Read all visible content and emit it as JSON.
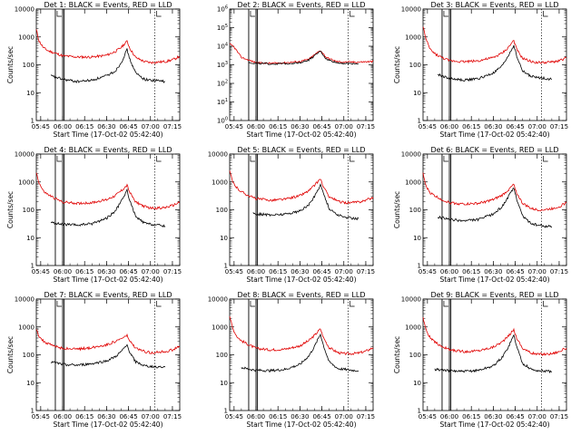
{
  "chart_data": [
    {
      "type": "line",
      "title": "Det 1: BLACK = Events, RED = LLD",
      "panel": 1,
      "xlabel": "Start Time (17-Oct-02 05:42:40)",
      "ylabel": "Counts/sec",
      "yscale": "log",
      "ylim": [
        1,
        10000
      ],
      "xticks": [
        "05:45",
        "06:00",
        "06:15",
        "06:30",
        "06:45",
        "07:00",
        "07:15"
      ],
      "yticks": [
        "1",
        "10",
        "100",
        "1000",
        "10000"
      ],
      "series": [
        {
          "color": "#e00000",
          "x": [
            "05:42",
            "05:44",
            "05:47",
            "05:50",
            "05:55",
            "06:00",
            "06:10",
            "06:20",
            "06:30",
            "06:36",
            "06:40",
            "06:44",
            "06:46",
            "06:50",
            "06:56",
            "07:00",
            "07:05",
            "07:10",
            "07:15",
            "07:20"
          ],
          "values": [
            1800,
            700,
            400,
            320,
            260,
            210,
            190,
            190,
            220,
            300,
            420,
            700,
            380,
            180,
            130,
            120,
            125,
            130,
            150,
            200
          ]
        },
        {
          "color": "#000000",
          "x": [
            "05:52",
            "05:56",
            "06:00",
            "06:10",
            "06:20",
            "06:30",
            "06:36",
            "06:40",
            "06:44",
            "06:46",
            "06:50",
            "06:56",
            "07:00",
            "07:05",
            "07:10"
          ],
          "values": [
            40,
            35,
            30,
            25,
            28,
            40,
            60,
            120,
            350,
            150,
            50,
            30,
            28,
            27,
            25
          ]
        }
      ],
      "vlines_solid": [
        "05:55",
        "06:00",
        "06:01"
      ],
      "vlines_dotted": [
        "07:03"
      ]
    },
    {
      "type": "line",
      "title": "Det 2: BLACK = Events, RED = LLD",
      "panel": 2,
      "xlabel": "Start Time (17-Oct-02 05:42:40)",
      "ylabel": "",
      "yscale": "log",
      "ylim": [
        1,
        1000000
      ],
      "xticks": [
        "05:45",
        "06:00",
        "06:15",
        "06:30",
        "06:45",
        "07:00",
        "07:15"
      ],
      "yticks": [
        "10^0",
        "10^1",
        "10^2",
        "10^3",
        "10^4",
        "10^5",
        "10^6"
      ],
      "series": [
        {
          "color": "#e00000",
          "x": [
            "05:42",
            "05:45",
            "05:50",
            "06:00",
            "06:10",
            "06:20",
            "06:30",
            "06:36",
            "06:40",
            "06:44",
            "06:48",
            "06:55",
            "07:00",
            "07:10",
            "07:20"
          ],
          "values": [
            13000,
            9000,
            2500,
            1300,
            1200,
            1300,
            1500,
            2000,
            3500,
            6000,
            2500,
            1500,
            1400,
            1400,
            1500
          ]
        },
        {
          "color": "#000000",
          "x": [
            "05:55",
            "06:00",
            "06:10",
            "06:20",
            "06:30",
            "06:36",
            "06:40",
            "06:44",
            "06:48",
            "06:55",
            "07:00",
            "07:10"
          ],
          "values": [
            1300,
            1200,
            1100,
            1150,
            1300,
            1800,
            3000,
            5500,
            2000,
            1300,
            1200,
            1150
          ]
        }
      ],
      "vlines_solid": [
        "05:55",
        "06:00",
        "06:01"
      ],
      "vlines_dotted": [
        "07:03"
      ]
    },
    {
      "type": "line",
      "title": "Det 3: BLACK = Events, RED = LLD",
      "panel": 3,
      "xlabel": "Start Time (17-Oct-02 05:42:40)",
      "ylabel": "Counts/sec",
      "yscale": "log",
      "ylim": [
        1,
        10000
      ],
      "xticks": [
        "05:45",
        "06:00",
        "06:15",
        "06:30",
        "06:45",
        "07:00",
        "07:15"
      ],
      "yticks": [
        "1",
        "10",
        "100",
        "1000",
        "10000"
      ],
      "series": [
        {
          "color": "#e00000",
          "x": [
            "05:42",
            "05:44",
            "05:47",
            "05:50",
            "05:55",
            "06:00",
            "06:10",
            "06:20",
            "06:30",
            "06:36",
            "06:40",
            "06:44",
            "06:46",
            "06:50",
            "06:56",
            "07:00",
            "07:05",
            "07:10",
            "07:15",
            "07:20"
          ],
          "values": [
            2500,
            800,
            350,
            250,
            180,
            140,
            130,
            140,
            180,
            260,
            400,
            750,
            350,
            170,
            130,
            120,
            120,
            125,
            140,
            180
          ]
        },
        {
          "color": "#000000",
          "x": [
            "05:52",
            "05:56",
            "06:00",
            "06:10",
            "06:20",
            "06:30",
            "06:36",
            "06:40",
            "06:44",
            "06:46",
            "06:50",
            "06:56",
            "07:00",
            "07:05",
            "07:10"
          ],
          "values": [
            45,
            38,
            32,
            28,
            32,
            50,
            90,
            200,
            500,
            200,
            60,
            38,
            35,
            33,
            30
          ]
        }
      ],
      "vlines_solid": [
        "05:55",
        "06:00",
        "06:01"
      ],
      "vlines_dotted": [
        "07:03"
      ]
    },
    {
      "type": "line",
      "title": "Det 4: BLACK = Events, RED = LLD",
      "panel": 4,
      "xlabel": "Start Time (17-Oct-02 05:42:40)",
      "ylabel": "Counts/sec",
      "yscale": "log",
      "ylim": [
        1,
        10000
      ],
      "xticks": [
        "05:45",
        "06:00",
        "06:15",
        "06:30",
        "06:45",
        "07:00",
        "07:15"
      ],
      "yticks": [
        "1",
        "10",
        "100",
        "1000",
        "10000"
      ],
      "series": [
        {
          "color": "#e00000",
          "x": [
            "05:42",
            "05:44",
            "05:47",
            "05:50",
            "05:55",
            "06:00",
            "06:10",
            "06:20",
            "06:30",
            "06:36",
            "06:40",
            "06:44",
            "06:46",
            "06:50",
            "06:56",
            "07:00",
            "07:05",
            "07:10",
            "07:15",
            "07:20"
          ],
          "values": [
            2200,
            900,
            450,
            350,
            250,
            190,
            170,
            180,
            230,
            330,
            480,
            750,
            400,
            190,
            130,
            115,
            115,
            120,
            140,
            190
          ]
        },
        {
          "color": "#000000",
          "x": [
            "05:52",
            "05:56",
            "06:00",
            "06:10",
            "06:20",
            "06:30",
            "06:36",
            "06:40",
            "06:44",
            "06:46",
            "06:50",
            "06:56",
            "07:00",
            "07:05",
            "07:10"
          ],
          "values": [
            35,
            32,
            30,
            28,
            32,
            50,
            90,
            200,
            500,
            200,
            55,
            33,
            30,
            28,
            26
          ]
        }
      ],
      "vlines_solid": [
        "05:55",
        "06:00",
        "06:01"
      ],
      "vlines_dotted": [
        "07:03"
      ]
    },
    {
      "type": "line",
      "title": "Det 5: BLACK = Events, RED = LLD",
      "panel": 5,
      "xlabel": "Start Time (17-Oct-02 05:42:40)",
      "ylabel": "",
      "yscale": "log",
      "ylim": [
        1,
        10000
      ],
      "xticks": [
        "05:45",
        "06:00",
        "06:15",
        "06:30",
        "06:45",
        "07:00",
        "07:15"
      ],
      "yticks": [
        "1",
        "10",
        "100",
        "1000",
        "10000"
      ],
      "series": [
        {
          "color": "#e00000",
          "x": [
            "05:42",
            "05:44",
            "05:47",
            "05:50",
            "05:55",
            "06:00",
            "06:10",
            "06:20",
            "06:30",
            "06:36",
            "06:40",
            "06:44",
            "06:46",
            "06:50",
            "06:56",
            "07:00",
            "07:05",
            "07:10",
            "07:15",
            "07:20"
          ],
          "values": [
            2500,
            1000,
            600,
            450,
            320,
            250,
            220,
            240,
            320,
            480,
            750,
            1300,
            650,
            300,
            200,
            180,
            180,
            190,
            220,
            280
          ]
        },
        {
          "color": "#000000",
          "x": [
            "05:58",
            "06:02",
            "06:10",
            "06:20",
            "06:30",
            "06:36",
            "06:40",
            "06:44",
            "06:46",
            "06:50",
            "06:56",
            "07:00",
            "07:05",
            "07:10"
          ],
          "values": [
            75,
            70,
            65,
            70,
            90,
            150,
            300,
            800,
            400,
            110,
            65,
            55,
            50,
            48
          ]
        }
      ],
      "vlines_solid": [
        "05:55",
        "06:00",
        "06:01"
      ],
      "vlines_dotted": [
        "07:03"
      ]
    },
    {
      "type": "line",
      "title": "Det 6: BLACK = Events, RED = LLD",
      "panel": 6,
      "xlabel": "Start Time (17-Oct-02 05:42:40)",
      "ylabel": "Counts/sec",
      "yscale": "log",
      "ylim": [
        1,
        10000
      ],
      "xticks": [
        "05:45",
        "06:00",
        "06:15",
        "06:30",
        "06:45",
        "07:00",
        "07:15"
      ],
      "yticks": [
        "1",
        "10",
        "100",
        "1000",
        "10000"
      ],
      "series": [
        {
          "color": "#e00000",
          "x": [
            "05:42",
            "05:44",
            "05:47",
            "05:50",
            "05:55",
            "06:00",
            "06:10",
            "06:20",
            "06:30",
            "06:36",
            "06:40",
            "06:44",
            "06:46",
            "06:50",
            "06:56",
            "07:00",
            "07:05",
            "07:10",
            "07:15",
            "07:20"
          ],
          "values": [
            2000,
            700,
            400,
            320,
            230,
            180,
            160,
            170,
            230,
            330,
            500,
            800,
            400,
            170,
            110,
            100,
            100,
            110,
            130,
            180
          ]
        },
        {
          "color": "#000000",
          "x": [
            "05:52",
            "05:56",
            "06:00",
            "06:10",
            "06:20",
            "06:30",
            "06:36",
            "06:40",
            "06:44",
            "06:46",
            "06:50",
            "06:56",
            "07:00",
            "07:05",
            "07:10"
          ],
          "values": [
            55,
            50,
            45,
            40,
            45,
            70,
            130,
            280,
            600,
            250,
            60,
            32,
            28,
            26,
            25
          ]
        }
      ],
      "vlines_solid": [
        "05:55",
        "06:00",
        "06:01"
      ],
      "vlines_dotted": [
        "07:03"
      ]
    },
    {
      "type": "line",
      "title": "Det 7: BLACK = Events, RED = LLD",
      "panel": 7,
      "xlabel": "Start Time (17-Oct-02 05:42:40)",
      "ylabel": "Counts/sec",
      "yscale": "log",
      "ylim": [
        1,
        10000
      ],
      "xticks": [
        "05:45",
        "06:00",
        "06:15",
        "06:30",
        "06:45",
        "07:00",
        "07:15"
      ],
      "yticks": [
        "1",
        "10",
        "100",
        "1000",
        "10000"
      ],
      "series": [
        {
          "color": "#e00000",
          "x": [
            "05:42",
            "05:44",
            "05:47",
            "05:50",
            "05:55",
            "06:00",
            "06:10",
            "06:20",
            "06:30",
            "06:36",
            "06:40",
            "06:44",
            "06:46",
            "06:50",
            "06:56",
            "07:00",
            "07:05",
            "07:10",
            "07:15",
            "07:20"
          ],
          "values": [
            900,
            450,
            300,
            250,
            200,
            170,
            160,
            180,
            230,
            300,
            380,
            480,
            300,
            170,
            130,
            120,
            125,
            130,
            150,
            200
          ]
        },
        {
          "color": "#000000",
          "x": [
            "05:52",
            "05:56",
            "06:00",
            "06:10",
            "06:20",
            "06:30",
            "06:36",
            "06:40",
            "06:44",
            "06:46",
            "06:50",
            "06:56",
            "07:00",
            "07:05",
            "07:10"
          ],
          "values": [
            55,
            50,
            45,
            42,
            48,
            60,
            85,
            130,
            220,
            120,
            55,
            40,
            38,
            37,
            36
          ]
        }
      ],
      "vlines_solid": [
        "05:55",
        "06:00",
        "06:01"
      ],
      "vlines_dotted": [
        "07:03"
      ]
    },
    {
      "type": "line",
      "title": "Det 8: BLACK = Events, RED = LLD",
      "panel": 8,
      "xlabel": "Start Time (17-Oct-02 05:42:40)",
      "ylabel": "",
      "yscale": "log",
      "ylim": [
        1,
        10000
      ],
      "xticks": [
        "05:45",
        "06:00",
        "06:15",
        "06:30",
        "06:45",
        "07:00",
        "07:15"
      ],
      "yticks": [
        "1",
        "10",
        "100",
        "1000",
        "10000"
      ],
      "series": [
        {
          "color": "#e00000",
          "x": [
            "05:42",
            "05:44",
            "05:47",
            "05:50",
            "05:55",
            "06:00",
            "06:10",
            "06:20",
            "06:30",
            "06:36",
            "06:40",
            "06:44",
            "06:46",
            "06:50",
            "06:56",
            "07:00",
            "07:05",
            "07:10",
            "07:15",
            "07:20"
          ],
          "values": [
            2500,
            900,
            450,
            320,
            230,
            170,
            150,
            160,
            210,
            320,
            500,
            850,
            420,
            180,
            120,
            110,
            110,
            115,
            135,
            180
          ]
        },
        {
          "color": "#000000",
          "x": [
            "05:50",
            "05:56",
            "06:00",
            "06:10",
            "06:20",
            "06:30",
            "06:36",
            "06:40",
            "06:44",
            "06:46",
            "06:50",
            "06:56",
            "07:00",
            "07:05",
            "07:10"
          ],
          "values": [
            35,
            30,
            28,
            27,
            30,
            45,
            90,
            200,
            550,
            220,
            55,
            32,
            30,
            28,
            27
          ]
        }
      ],
      "vlines_solid": [
        "05:55",
        "06:00",
        "06:01"
      ],
      "vlines_dotted": [
        "07:03"
      ]
    },
    {
      "type": "line",
      "title": "Det 9: BLACK = Events, RED = LLD",
      "panel": 9,
      "xlabel": "Start Time (17-Oct-02 05:42:40)",
      "ylabel": "Counts/sec",
      "yscale": "log",
      "ylim": [
        1,
        10000
      ],
      "xticks": [
        "05:45",
        "06:00",
        "06:15",
        "06:30",
        "06:45",
        "07:00",
        "07:15"
      ],
      "yticks": [
        "1",
        "10",
        "100",
        "1000",
        "10000"
      ],
      "series": [
        {
          "color": "#e00000",
          "x": [
            "05:42",
            "05:44",
            "05:47",
            "05:50",
            "05:55",
            "06:00",
            "06:10",
            "06:20",
            "06:30",
            "06:36",
            "06:40",
            "06:44",
            "06:46",
            "06:50",
            "06:56",
            "07:00",
            "07:05",
            "07:10",
            "07:15",
            "07:20"
          ],
          "values": [
            2200,
            800,
            400,
            280,
            200,
            150,
            130,
            140,
            190,
            290,
            450,
            800,
            400,
            170,
            115,
            105,
            105,
            110,
            130,
            175
          ]
        },
        {
          "color": "#000000",
          "x": [
            "05:50",
            "05:56",
            "06:00",
            "06:10",
            "06:20",
            "06:30",
            "06:36",
            "06:40",
            "06:44",
            "06:46",
            "06:50",
            "06:56",
            "07:00",
            "07:05",
            "07:10"
          ],
          "values": [
            30,
            28,
            27,
            25,
            28,
            40,
            80,
            180,
            500,
            200,
            50,
            30,
            27,
            26,
            25
          ]
        }
      ],
      "vlines_solid": [
        "05:55",
        "06:00",
        "06:01"
      ],
      "vlines_dotted": [
        "07:03"
      ]
    }
  ]
}
